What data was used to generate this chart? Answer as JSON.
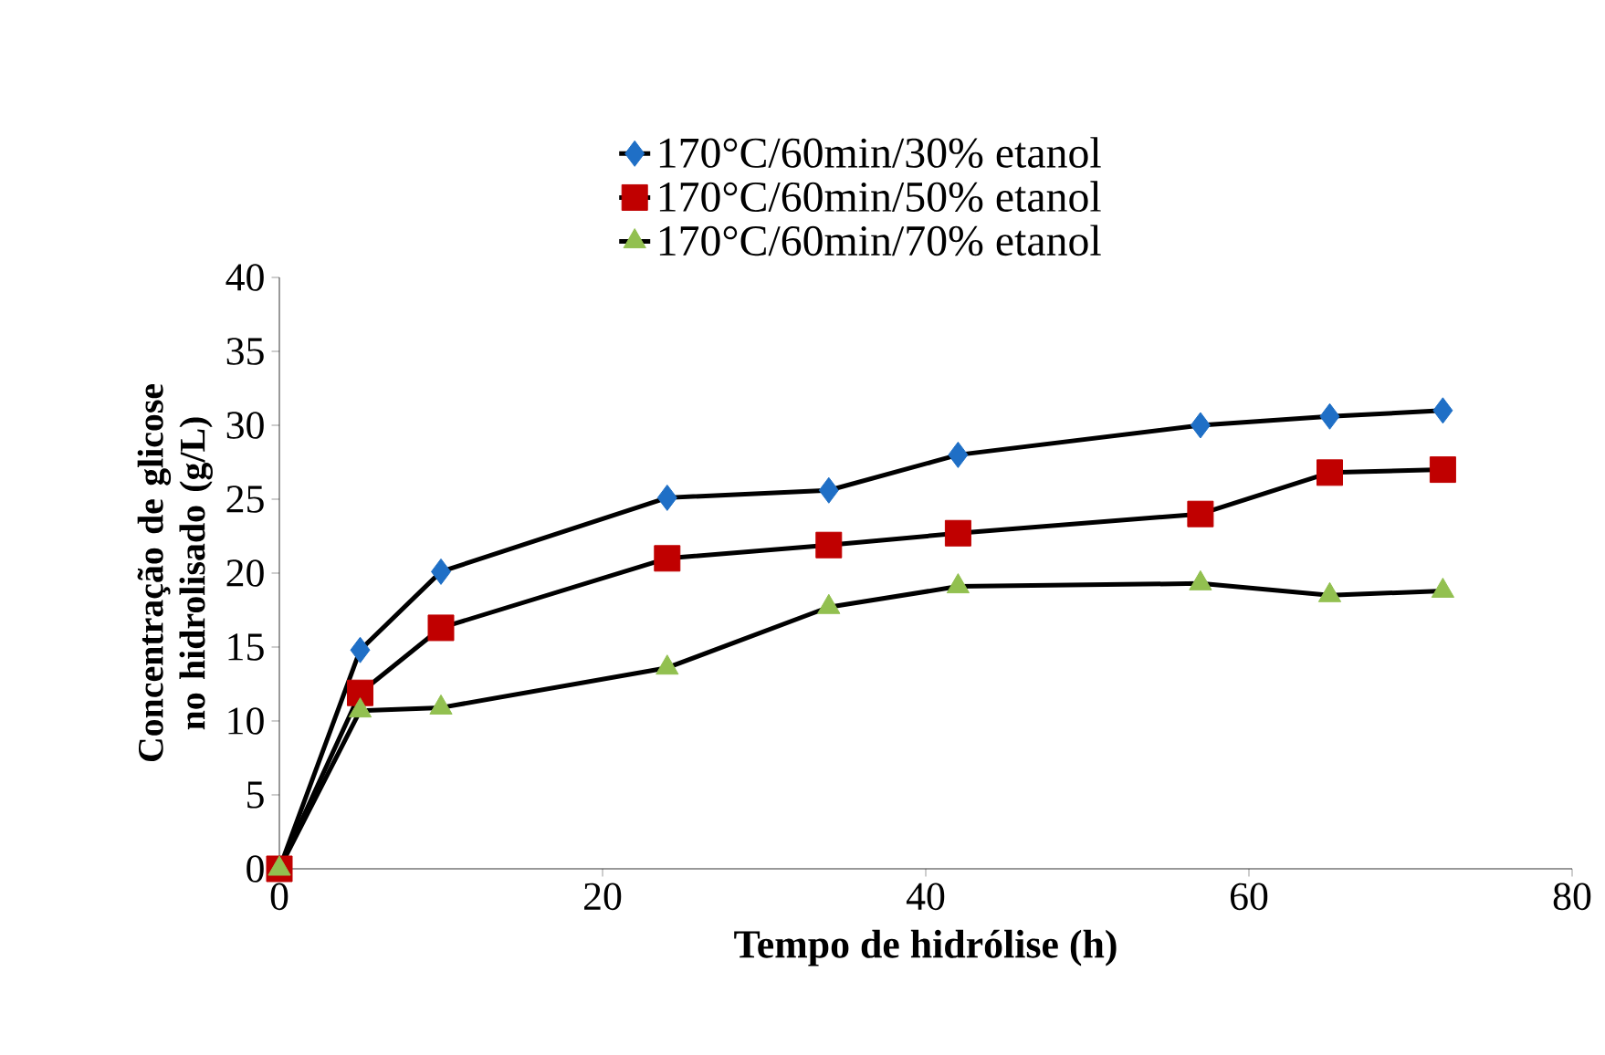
{
  "chart_data": {
    "type": "line",
    "xlabel": "Tempo de hidrólise (h)",
    "ylabel": "Concentração de glicose no hidrolisado (g/L)",
    "x": [
      0,
      5,
      10,
      24,
      34,
      42,
      57,
      65,
      72
    ],
    "series": [
      {
        "name": "170°C/60min/30% etanol",
        "color": "#1f6fc6",
        "marker": "diamond",
        "values": [
          0,
          14.8,
          20.1,
          25.1,
          25.6,
          28.0,
          30.0,
          30.6,
          31.0
        ]
      },
      {
        "name": "170°C/60min/50% etanol",
        "color": "#c00000",
        "marker": "square",
        "values": [
          0,
          11.9,
          16.3,
          21.0,
          21.9,
          22.7,
          24.0,
          26.8,
          27.0
        ]
      },
      {
        "name": "170°C/60min/70% etanol",
        "color": "#92c050",
        "marker": "triangle",
        "values": [
          0,
          10.7,
          10.9,
          13.6,
          17.7,
          19.1,
          19.3,
          18.5,
          18.8
        ]
      }
    ],
    "xlim": [
      0,
      80
    ],
    "xticks": [
      0,
      20,
      40,
      60,
      80
    ],
    "ylim": [
      0,
      40
    ],
    "yticks": [
      0,
      5,
      10,
      15,
      20,
      25,
      30,
      35,
      40
    ],
    "legend": "top",
    "grid": false,
    "line_style": "solid"
  }
}
